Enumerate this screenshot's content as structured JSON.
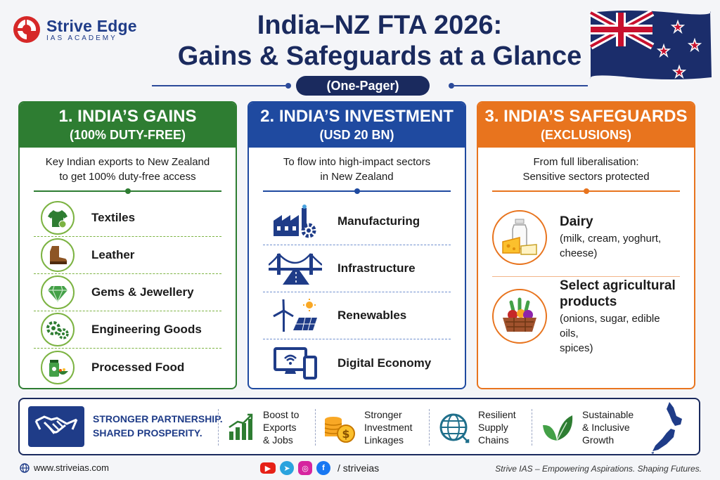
{
  "brand": {
    "name": "Strive Edge",
    "sub": "IAS ACADEMY"
  },
  "title": {
    "line1": "India–NZ FTA 2026:",
    "line2": "Gains & Safeguards at a Glance",
    "badge": "(One-Pager)"
  },
  "columns": {
    "gains": {
      "title": "1. INDIA’S GAINS",
      "subtitle": "(100% DUTY-FREE)",
      "desc1": "Key Indian exports to New Zealand",
      "desc2": "to get 100% duty-free access",
      "items": [
        {
          "label": "Textiles",
          "icon": "tshirt-icon"
        },
        {
          "label": "Leather",
          "icon": "boot-icon"
        },
        {
          "label": "Gems & Jewellery",
          "icon": "diamond-icon"
        },
        {
          "label": "Engineering Goods",
          "icon": "gears-icon"
        },
        {
          "label": "Processed Food",
          "icon": "jar-bowl-icon"
        }
      ],
      "color": "#2e7d32"
    },
    "investment": {
      "title": "2. INDIA’S INVESTMENT",
      "subtitle": "(USD 20 BN)",
      "desc1": "To flow into high-impact sectors",
      "desc2": "in New Zealand",
      "items": [
        {
          "label": "Manufacturing",
          "icon": "factory-gear-icon"
        },
        {
          "label": "Infrastructure",
          "icon": "bridge-icon"
        },
        {
          "label": "Renewables",
          "icon": "wind-solar-icon"
        },
        {
          "label": "Digital Economy",
          "icon": "devices-icon"
        }
      ],
      "color": "#1f4aa0"
    },
    "safeguards": {
      "title": "3. INDIA’S SAFEGUARDS",
      "subtitle": "(EXCLUSIONS)",
      "desc1": "From full liberalisation:",
      "desc2": "Sensitive sectors protected",
      "items": [
        {
          "title": "Dairy",
          "sub1": "(milk, cream, yoghurt,",
          "sub2": "cheese)",
          "icon": "dairy-icon"
        },
        {
          "title1": "Select agricultural",
          "title2": "products",
          "sub1": "(onions, sugar, edible oils,",
          "sub2": "spices)",
          "icon": "vegetable-basket-icon"
        }
      ],
      "color": "#e8741e"
    }
  },
  "bottom": {
    "tagline1": "STRONGER PARTNERSHIP.",
    "tagline2": "SHARED PROSPERITY.",
    "benefits": [
      {
        "l1": "Boost to",
        "l2": "Exports",
        "l3": "& Jobs",
        "icon": "growth-chart-icon"
      },
      {
        "l1": "Stronger",
        "l2": "Investment",
        "l3": "Linkages",
        "icon": "coins-icon"
      },
      {
        "l1": "Resilient",
        "l2": "Supply",
        "l3": "Chains",
        "icon": "globe-arrows-icon"
      },
      {
        "l1": "Sustainable",
        "l2": "& Inclusive",
        "l3": "Growth",
        "icon": "leaves-icon"
      }
    ]
  },
  "footer": {
    "website": "www.striveias.com",
    "handle": "/ striveias",
    "motto": "Strive IAS – Empowering Aspirations. Shaping Futures."
  }
}
